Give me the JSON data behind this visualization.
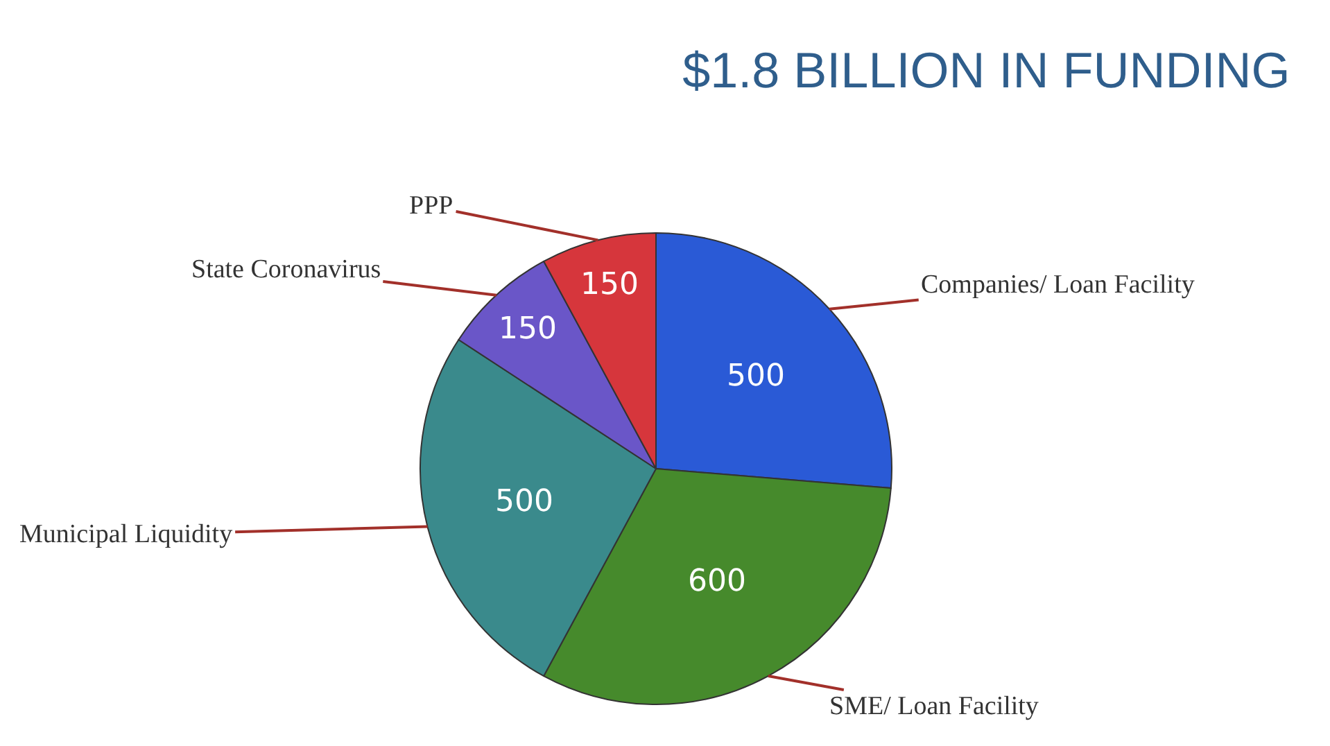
{
  "chart_data": {
    "type": "pie",
    "title": "$1.8 BILLION IN FUNDING",
    "categories": [
      "Companies/ Loan Facility",
      "SME/ Loan Facility",
      "Municipal Liquidity",
      "State Coronavirus",
      "PPP"
    ],
    "values": [
      500,
      600,
      500,
      150,
      150
    ],
    "colors": [
      "#2a5ad6",
      "#468a2c",
      "#3a8a8c",
      "#6a56c8",
      "#d6363c"
    ],
    "data_labels": true,
    "legend": false
  }
}
